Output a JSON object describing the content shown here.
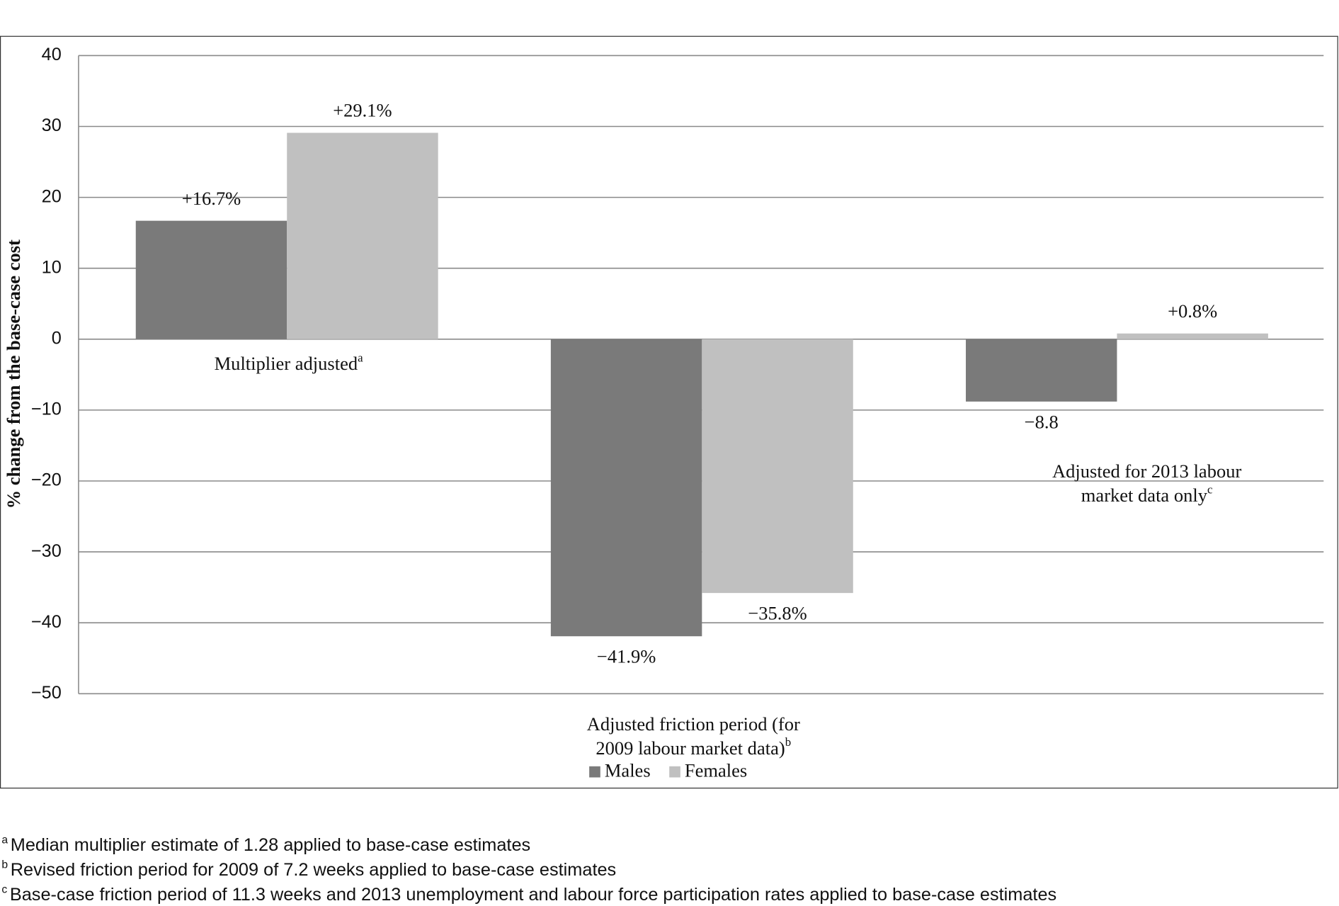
{
  "chart_data": {
    "type": "bar",
    "y_label": "% change from the base-case cost",
    "categories": [
      [
        "Multiplier adjusted"
      ],
      [
        "Adjusted friction period (for",
        "2009 labour market data)"
      ],
      [
        "Adjusted for 2013 labour",
        "market data only"
      ]
    ],
    "category_notes": [
      "a",
      "b",
      "c"
    ],
    "series": [
      {
        "name": "Males",
        "color": "#7a7a7a",
        "values": [
          16.7,
          -41.9,
          -8.8
        ],
        "value_labels": [
          "+16.7%",
          "−41.9%",
          "−8.8"
        ]
      },
      {
        "name": "Females",
        "color": "#c0c0c0",
        "values": [
          29.1,
          -35.8,
          0.8
        ],
        "value_labels": [
          "+29.1%",
          "−35.8%",
          "+0.8%"
        ]
      }
    ],
    "ylim": [
      -50,
      40
    ],
    "yticks": [
      {
        "value": -50,
        "label": "−50"
      },
      {
        "value": -40,
        "label": "−40"
      },
      {
        "value": -30,
        "label": "−30"
      },
      {
        "value": -20,
        "label": "−20"
      },
      {
        "value": -10,
        "label": "−10"
      },
      0,
      10,
      20,
      30,
      40
    ],
    "grid": true,
    "legend": "bottom"
  },
  "footnotes": [
    {
      "mark": "a",
      "text": "Median multiplier estimate of 1.28 applied to base-case estimates"
    },
    {
      "mark": "b",
      "text": "Revised friction period for 2009 of 7.2 weeks applied to base-case estimates"
    },
    {
      "mark": "c",
      "text": "Base-case friction period of 11.3 weeks and 2013 unemployment and labour force participation rates applied to base-case estimates"
    }
  ]
}
